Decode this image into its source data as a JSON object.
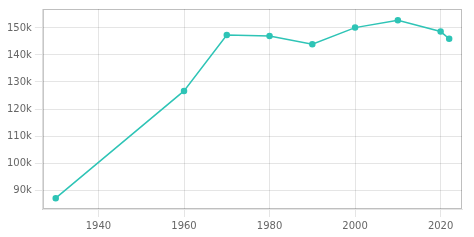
{
  "chart_data": {
    "type": "line",
    "x": [
      1930,
      1960,
      1970,
      1980,
      1990,
      2000,
      2010,
      2020,
      2022
    ],
    "values": [
      87000,
      126706,
      147370,
      147051,
      143968,
      150115,
      152871,
      148655,
      146000
    ],
    "color": "#2ec4b6",
    "marker": "circle",
    "xlim": [
      1927,
      2025
    ],
    "ylim": [
      83000,
      157000
    ],
    "xticks": [
      1940,
      1960,
      1980,
      2000,
      2020
    ],
    "yticks": [
      {
        "value": 90000,
        "label": "90k"
      },
      {
        "value": 100000,
        "label": "100k"
      },
      {
        "value": 110000,
        "label": "110k"
      },
      {
        "value": 120000,
        "label": "120k"
      },
      {
        "value": 130000,
        "label": "130k"
      },
      {
        "value": 140000,
        "label": "140k"
      },
      {
        "value": 150000,
        "label": "150k"
      }
    ],
    "grid": true
  }
}
